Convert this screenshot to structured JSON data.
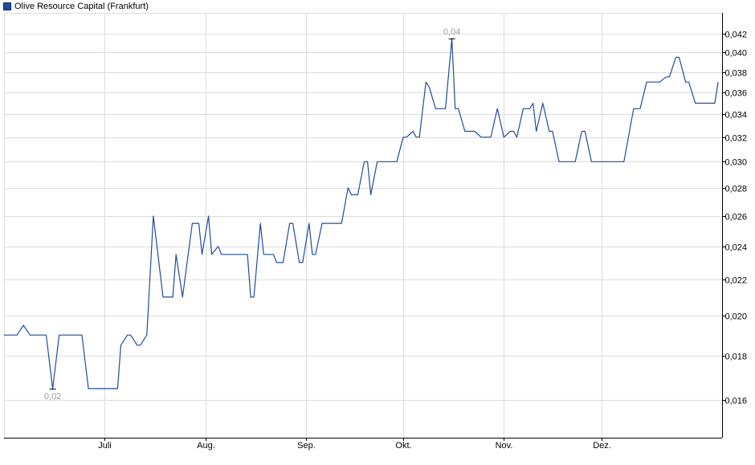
{
  "legend": {
    "label": "Olive Resource Capital (Frankfurt)"
  },
  "colors": {
    "line": "#1f4e9a",
    "grid": "#dcdcdc",
    "axis": "#000000",
    "tick_text": "#000000",
    "annotation": "#9a9a9a"
  },
  "chart_data": {
    "type": "line",
    "title": "",
    "xlabel": "",
    "ylabel": "",
    "y_scale": "log",
    "ylim": [
      0.0145,
      0.0444
    ],
    "grid": true,
    "legend_placement": "top-left",
    "y_axis_side": "right",
    "y_ticks": [
      0.016,
      0.018,
      0.02,
      0.022,
      0.024,
      0.026,
      0.028,
      0.03,
      0.032,
      0.034,
      0.036,
      0.038,
      0.04,
      0.042
    ],
    "y_tick_labels": [
      "0,016",
      "0,018",
      "0,020",
      "0,022",
      "0,024",
      "0,026",
      "0,028",
      "0,030",
      "0,032",
      "0,034",
      "0,036",
      "0,038",
      "0,040",
      "0,042"
    ],
    "x_ticks": [
      {
        "label": "Juli",
        "day": 31
      },
      {
        "label": "Aug.",
        "day": 62
      },
      {
        "label": "Sep.",
        "day": 93
      },
      {
        "label": "Okt.",
        "day": 123
      },
      {
        "label": "Nov.",
        "day": 154
      },
      {
        "label": "Dez.",
        "day": 184
      }
    ],
    "x_range": [
      0,
      220
    ],
    "series": [
      {
        "name": "Olive Resource Capital (Frankfurt)",
        "points": [
          [
            0,
            0.019
          ],
          [
            4,
            0.019
          ],
          [
            6,
            0.0195
          ],
          [
            8,
            0.019
          ],
          [
            13,
            0.019
          ],
          [
            15,
            0.0165
          ],
          [
            17,
            0.019
          ],
          [
            24,
            0.019
          ],
          [
            26,
            0.0165
          ],
          [
            35,
            0.0165
          ],
          [
            36,
            0.0185
          ],
          [
            38,
            0.019
          ],
          [
            39,
            0.019
          ],
          [
            41,
            0.0185
          ],
          [
            42,
            0.0185
          ],
          [
            44,
            0.019
          ],
          [
            46,
            0.026
          ],
          [
            49,
            0.021
          ],
          [
            52,
            0.021
          ],
          [
            53,
            0.0235
          ],
          [
            55,
            0.021
          ],
          [
            58,
            0.0255
          ],
          [
            60,
            0.0255
          ],
          [
            61,
            0.0235
          ],
          [
            63,
            0.026
          ],
          [
            64,
            0.0235
          ],
          [
            66,
            0.024
          ],
          [
            67,
            0.0235
          ],
          [
            75,
            0.0235
          ],
          [
            76,
            0.021
          ],
          [
            77,
            0.021
          ],
          [
            79,
            0.0255
          ],
          [
            80,
            0.0235
          ],
          [
            83,
            0.0235
          ],
          [
            84,
            0.023
          ],
          [
            86,
            0.023
          ],
          [
            88,
            0.0255
          ],
          [
            89,
            0.0255
          ],
          [
            91,
            0.023
          ],
          [
            92,
            0.023
          ],
          [
            94,
            0.0255
          ],
          [
            95,
            0.0235
          ],
          [
            96,
            0.0235
          ],
          [
            98,
            0.0255
          ],
          [
            104,
            0.0255
          ],
          [
            106,
            0.028
          ],
          [
            107,
            0.0275
          ],
          [
            109,
            0.0275
          ],
          [
            111,
            0.03
          ],
          [
            112,
            0.03
          ],
          [
            113,
            0.0275
          ],
          [
            115,
            0.03
          ],
          [
            121,
            0.03
          ],
          [
            123,
            0.032
          ],
          [
            124,
            0.032
          ],
          [
            126,
            0.0325
          ],
          [
            127,
            0.032
          ],
          [
            128,
            0.032
          ],
          [
            130,
            0.037
          ],
          [
            131,
            0.0365
          ],
          [
            133,
            0.0345
          ],
          [
            136,
            0.0345
          ],
          [
            138,
            0.0415
          ],
          [
            139,
            0.0345
          ],
          [
            140,
            0.0345
          ],
          [
            142,
            0.0325
          ],
          [
            145,
            0.0325
          ],
          [
            147,
            0.032
          ],
          [
            150,
            0.032
          ],
          [
            152,
            0.0345
          ],
          [
            154,
            0.032
          ],
          [
            156,
            0.0325
          ],
          [
            157,
            0.0325
          ],
          [
            158,
            0.032
          ],
          [
            160,
            0.0345
          ],
          [
            162,
            0.0345
          ],
          [
            163,
            0.035
          ],
          [
            164,
            0.0325
          ],
          [
            166,
            0.035
          ],
          [
            168,
            0.0325
          ],
          [
            169,
            0.0325
          ],
          [
            171,
            0.03
          ],
          [
            176,
            0.03
          ],
          [
            178,
            0.0325
          ],
          [
            179,
            0.0325
          ],
          [
            181,
            0.03
          ],
          [
            191,
            0.03
          ],
          [
            194,
            0.0345
          ],
          [
            196,
            0.0345
          ],
          [
            198,
            0.037
          ],
          [
            202,
            0.037
          ],
          [
            204,
            0.0375
          ],
          [
            205,
            0.0375
          ],
          [
            207,
            0.0395
          ],
          [
            208,
            0.0395
          ],
          [
            210,
            0.037
          ],
          [
            211,
            0.037
          ],
          [
            213,
            0.035
          ],
          [
            219,
            0.035
          ],
          [
            220,
            0.037
          ]
        ]
      }
    ],
    "annotations": [
      {
        "label": "0,04",
        "day": 138,
        "value": 0.0415,
        "kind": "high"
      },
      {
        "label": "0,02",
        "day": 15,
        "value": 0.0165,
        "kind": "low"
      }
    ]
  }
}
